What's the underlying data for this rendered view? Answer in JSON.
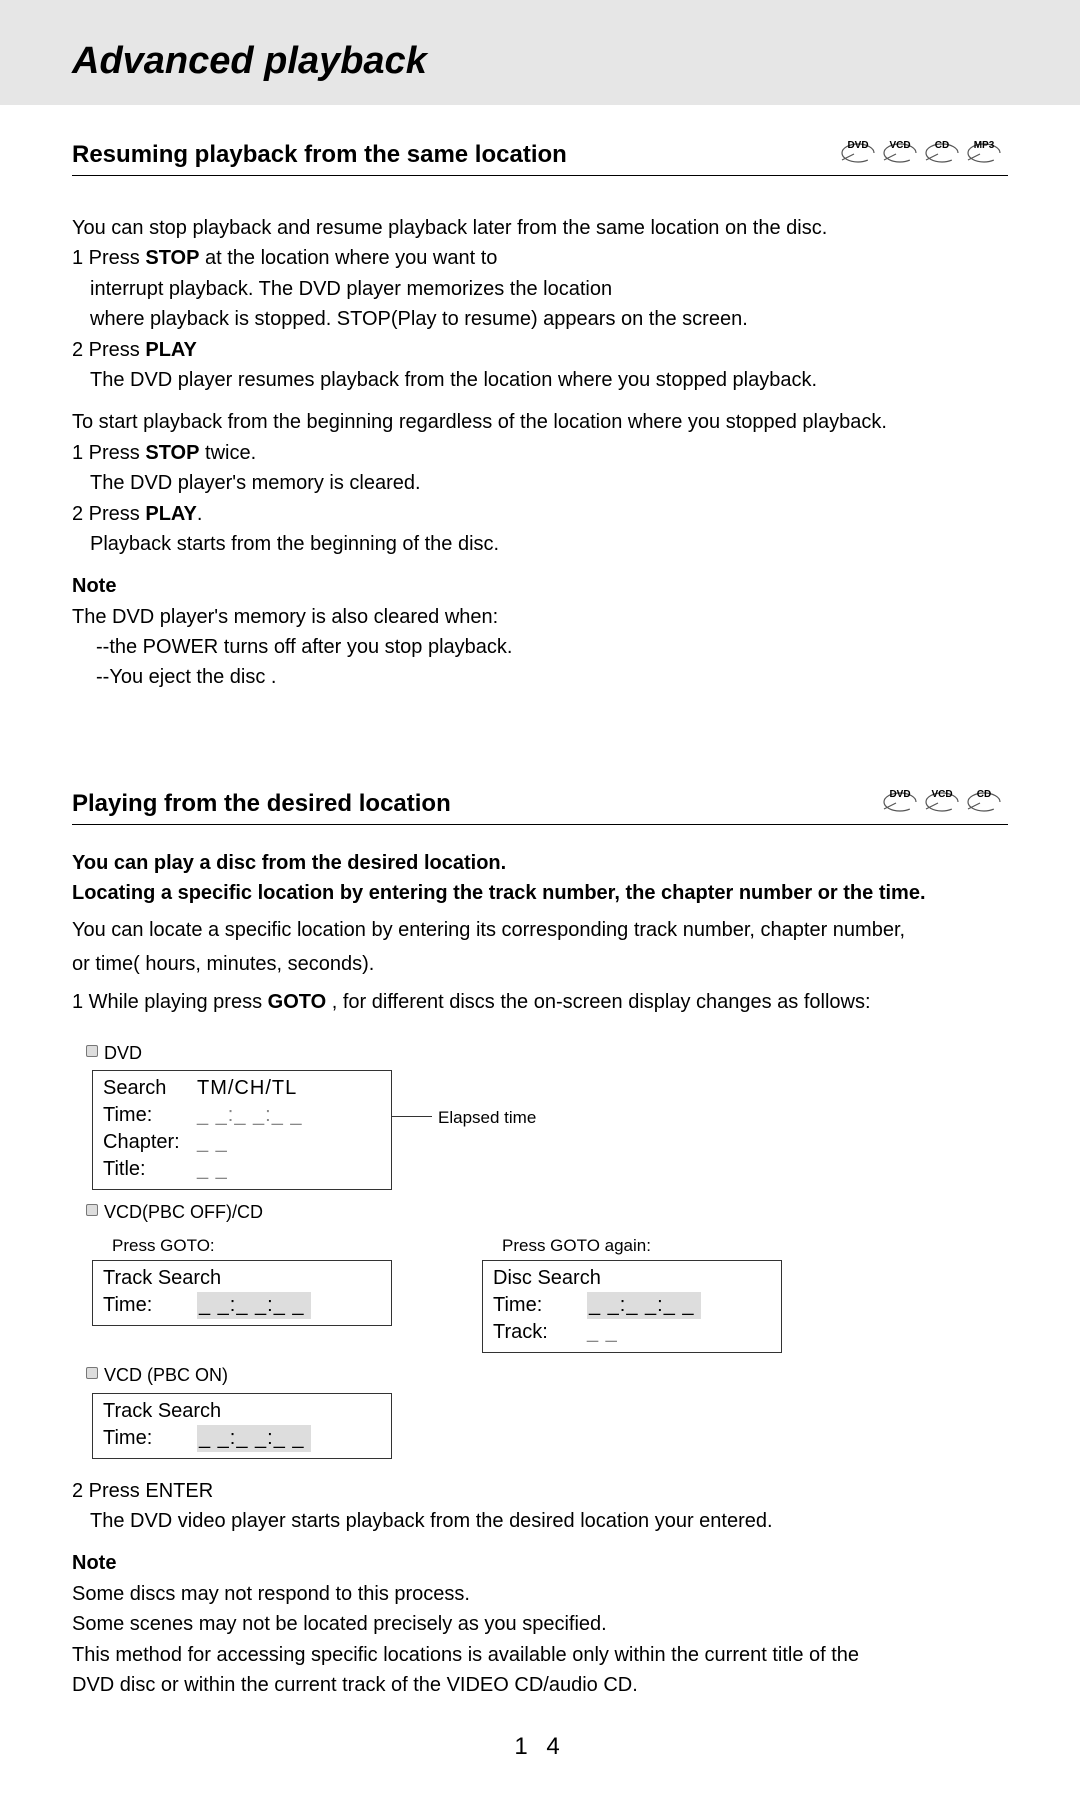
{
  "page": {
    "main_title": "Advanced playback",
    "page_number": "1 4"
  },
  "section1": {
    "title": "Resuming playback from the same location",
    "disc_badges": [
      "DVD",
      "VCD",
      "CD",
      "MP3"
    ],
    "intro": "You can stop playback and resume playback later from the same location on the disc.",
    "step1_pre": "1 Press ",
    "step1_bold": "STOP",
    "step1_post": " at the location where you want to",
    "step1_b": "interrupt playback. The DVD player memorizes the location",
    "step1_c": "where playback is stopped. STOP(Play to resume) appears on the screen.",
    "step2_pre": "2 Press ",
    "step2_bold": "PLAY",
    "step2_b": "The DVD player resumes playback from the location where you stopped playback.",
    "restart_intro": "To start playback from the beginning regardless of the location where you stopped playback.",
    "r_step1_pre": "1 Press ",
    "r_step1_bold": "STOP",
    "r_step1_post": " twice.",
    "r_step1_b": "The DVD player's memory is cleared.",
    "r_step2_pre": "2 Press ",
    "r_step2_bold": "PLAY",
    "r_step2_post": ".",
    "r_step2_b": "Playback starts from the beginning of the disc.",
    "note_label": "Note",
    "note_a": "The DVD player's  memory is also cleared when:",
    "note_b": "--the POWER turns off after you stop playback.",
    "note_c": "--You eject  the disc ."
  },
  "section2": {
    "title": "Playing from the desired location",
    "disc_badges": [
      "DVD",
      "VCD",
      "CD"
    ],
    "intro_bold_a": "You can play a disc from the desired location.",
    "intro_bold_b": "Locating a specific location by entering  the track number, the chapter number or the time.",
    "para_a": "You can locate a specific location by entering its corresponding track number, chapter number,",
    "para_b": "or time( hours, minutes, seconds).",
    "step1_pre": "1  While playing press ",
    "step1_bold": "GOTO",
    "step1_post": "  , for different discs the on-screen display changes as follows:",
    "osd_dvd_label": "DVD",
    "osd_dvd_search_key": "Search",
    "osd_dvd_search_val": "TM/CH/TL",
    "osd_dvd_time_key": "Time:",
    "osd_dvd_time_val": "_ _:_ _:_ _",
    "osd_dvd_chapter_key": "Chapter:",
    "osd_dvd_chapter_val": "_ _",
    "osd_dvd_title_key": "Title:",
    "osd_dvd_title_val": "_ _",
    "osd_dvd_side": "Elapsed time",
    "osd_vcdoff_label": "VCD(PBC OFF)/CD",
    "osd_goto1": "Press GOTO:",
    "osd_goto2": "Press GOTO again:",
    "osd_track_search": "Track Search",
    "osd_time_key": "Time:",
    "osd_time_val": "_ _:_ _:_ _",
    "osd_disc_search": "Disc Search",
    "osd_track_key": "Track:",
    "osd_track_val": "_ _",
    "osd_vcdon_label": "VCD (PBC ON)",
    "step2_a": "2 Press ENTER",
    "step2_b": "The DVD video player starts playback from the desired location your entered.",
    "note_label": "Note",
    "note_a": "Some discs may not respond to this process.",
    "note_b": "Some scenes may not be located precisely as you specified.",
    "note_c": "This method for accessing specific locations is available only within the current title of the",
    "note_d": "DVD disc or within the current track of the VIDEO CD/audio CD."
  },
  "style": {
    "disc_icon_stroke": "#555555",
    "disc_icon_width": 36,
    "disc_icon_height": 22,
    "header_bg": "#e6e6e6",
    "osd_border": "#333333",
    "osd_time_bg": "#dddddd"
  }
}
